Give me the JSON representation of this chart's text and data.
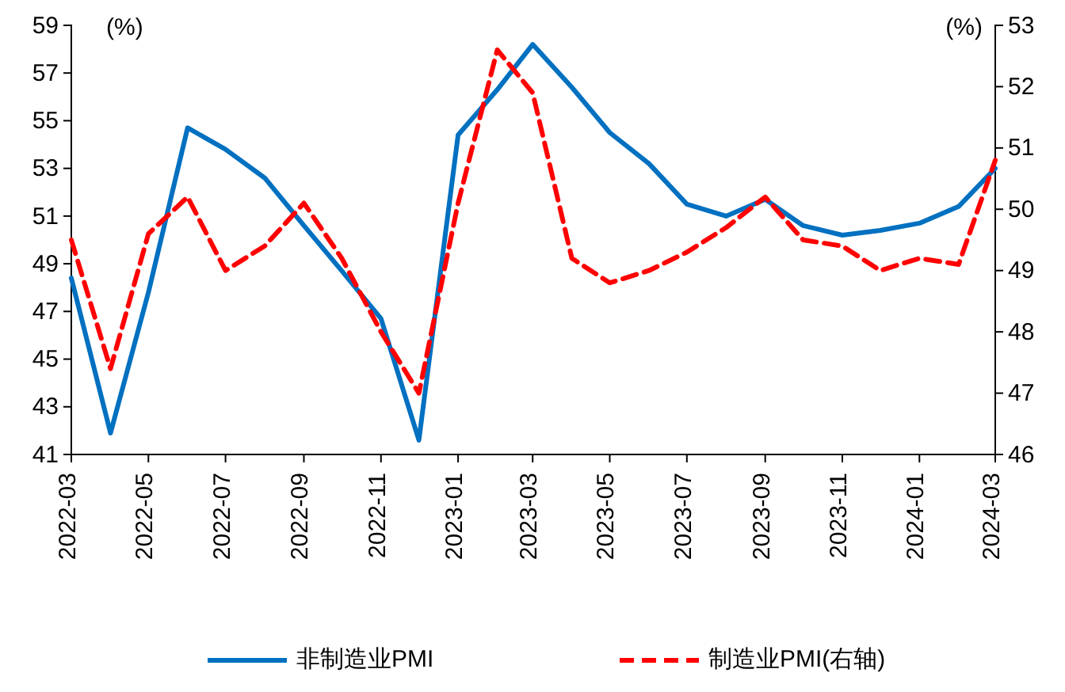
{
  "chart_data": {
    "type": "line",
    "ylabel": "(%)",
    "y2label": "(%)",
    "x": [
      "2022-03",
      "2022-04",
      "2022-05",
      "2022-06",
      "2022-07",
      "2022-08",
      "2022-09",
      "2022-10",
      "2022-11",
      "2022-12",
      "2023-01",
      "2023-02",
      "2023-03",
      "2023-04",
      "2023-05",
      "2023-06",
      "2023-07",
      "2023-08",
      "2023-09",
      "2023-10",
      "2023-11",
      "2023-12",
      "2024-01",
      "2024-02",
      "2024-03"
    ],
    "xlim": [
      "2022-03",
      "2024-03"
    ],
    "xticks": [
      "2022-03",
      "2022-05",
      "2022-07",
      "2022-09",
      "2022-11",
      "2023-01",
      "2023-03",
      "2023-05",
      "2023-07",
      "2023-09",
      "2023-11",
      "2024-01",
      "2024-03"
    ],
    "ylim": [
      41,
      59
    ],
    "yticks": [
      41,
      43,
      45,
      47,
      49,
      51,
      53,
      55,
      57,
      59
    ],
    "y2lim": [
      46,
      53
    ],
    "y2ticks": [
      46,
      47,
      48,
      49,
      50,
      51,
      52,
      53
    ],
    "grid": false,
    "legend": "bottom",
    "series": [
      {
        "name": "非制造业PMI",
        "color": "#0070c0",
        "line_style": "solid",
        "values": [
          48.4,
          41.9,
          47.8,
          54.7,
          53.8,
          52.6,
          50.6,
          48.7,
          46.7,
          41.6,
          54.4,
          56.3,
          58.2,
          56.4,
          54.5,
          53.2,
          51.5,
          51.0,
          51.7,
          50.6,
          50.2,
          50.4,
          50.7,
          51.4,
          53.0
        ]
      },
      {
        "name": "制造业PMI(右轴)",
        "color": "#ff0000",
        "line_style": "dashed",
        "axis": "y2",
        "values": [
          49.5,
          47.4,
          49.6,
          50.2,
          49.0,
          49.4,
          50.1,
          49.2,
          48.0,
          47.0,
          50.1,
          52.6,
          51.9,
          49.2,
          48.8,
          49.0,
          49.3,
          49.7,
          50.2,
          49.5,
          49.4,
          49.0,
          49.2,
          49.1,
          50.8
        ]
      }
    ]
  }
}
